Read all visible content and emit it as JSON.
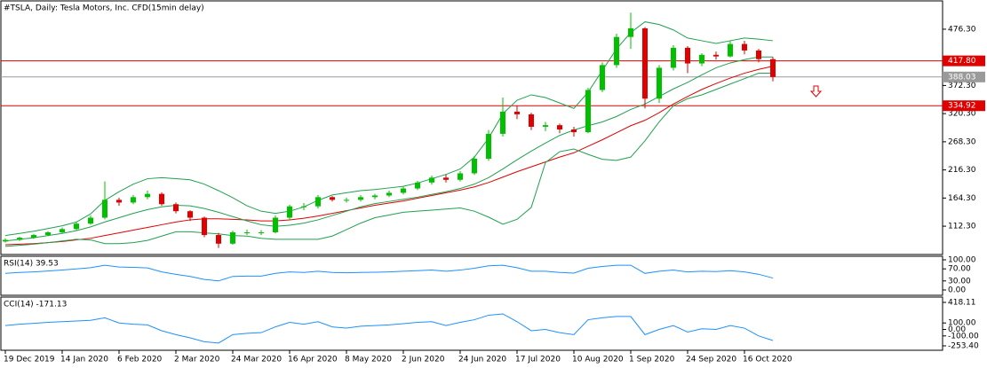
{
  "chart_data": [
    {
      "type": "candlestick",
      "title": "#TSLA, Daily:  Tesla Motors, Inc.  CFD(15min delay)",
      "categories": [
        "19 Dec 2019",
        null,
        null,
        null,
        "14 Jan 2020",
        null,
        null,
        null,
        "6 Feb 2020",
        null,
        null,
        null,
        "2 Mar 2020",
        null,
        null,
        null,
        "24 Mar 2020",
        null,
        null,
        null,
        "16 Apr 2020",
        null,
        null,
        null,
        "8 May 2020",
        null,
        null,
        null,
        "2 Jun 2020",
        null,
        null,
        null,
        "24 Jun 2020",
        null,
        null,
        null,
        "17 Jul 2020",
        null,
        null,
        null,
        "10 Aug 2020",
        null,
        null,
        null,
        "1 Sep 2020",
        null,
        null,
        null,
        "24 Sep 2020",
        null,
        null,
        null,
        "16 Oct 2020",
        null,
        null
      ],
      "open": [
        84,
        87,
        91,
        96,
        101,
        107,
        117,
        128,
        161,
        156,
        166,
        172,
        153,
        140,
        128,
        96,
        80,
        101,
        101,
        101,
        128,
        149,
        149,
        166,
        161,
        161,
        166,
        169,
        174,
        182,
        193,
        202,
        198,
        210,
        237,
        283,
        324,
        319,
        296,
        299,
        291,
        286,
        364,
        410,
        462,
        478,
        348,
        405,
        442,
        413,
        429,
        426,
        449,
        437,
        421
      ],
      "high": [
        90,
        93,
        98,
        103,
        110,
        120,
        132,
        195,
        165,
        170,
        178,
        175,
        156,
        142,
        130,
        100,
        104,
        106,
        105,
        132,
        152,
        155,
        170,
        168,
        165,
        170,
        172,
        178,
        186,
        196,
        206,
        208,
        214,
        242,
        290,
        350,
        335,
        322,
        305,
        302,
        296,
        368,
        415,
        468,
        507,
        480,
        410,
        447,
        445,
        432,
        435,
        456,
        455,
        440,
        425
      ],
      "low": [
        82,
        85,
        89,
        94,
        99,
        105,
        115,
        125,
        150,
        153,
        162,
        150,
        136,
        122,
        92,
        72,
        78,
        96,
        96,
        99,
        124,
        142,
        145,
        158,
        156,
        158,
        162,
        166,
        171,
        179,
        189,
        193,
        195,
        207,
        233,
        278,
        310,
        290,
        288,
        284,
        278,
        284,
        360,
        405,
        440,
        330,
        340,
        400,
        395,
        408,
        420,
        424,
        430,
        415,
        380
      ],
      "close": [
        87,
        91,
        96,
        101,
        107,
        117,
        128,
        161,
        156,
        166,
        172,
        153,
        140,
        128,
        96,
        80,
        101,
        101,
        101,
        128,
        149,
        149,
        166,
        161,
        161,
        166,
        169,
        174,
        182,
        193,
        202,
        198,
        210,
        237,
        283,
        324,
        319,
        296,
        299,
        291,
        286,
        364,
        410,
        462,
        478,
        348,
        405,
        442,
        413,
        429,
        426,
        449,
        437,
        421,
        388
      ],
      "up_color": "#00c000",
      "down_color": "#e00000",
      "series": [
        {
          "color": "#e00000",
          "values": [
            78,
            79,
            80,
            82,
            84,
            87,
            90,
            95,
            100,
            105,
            110,
            115,
            120,
            124,
            126,
            126,
            125,
            124,
            122,
            122,
            124,
            127,
            131,
            136,
            141,
            146,
            151,
            155,
            159,
            164,
            169,
            174,
            179,
            185,
            193,
            203,
            213,
            222,
            231,
            240,
            248,
            260,
            272,
            285,
            298,
            308,
            322,
            338,
            352,
            365,
            376,
            386,
            395,
            402,
            408
          ]
        },
        {
          "color": "#20a050",
          "values": [
            95,
            99,
            103,
            108,
            113,
            120,
            135,
            160,
            176,
            190,
            200,
            202,
            200,
            198,
            190,
            178,
            165,
            150,
            140,
            136,
            140,
            148,
            160,
            170,
            174,
            178,
            180,
            183,
            186,
            192,
            200,
            208,
            218,
            240,
            275,
            320,
            345,
            355,
            350,
            340,
            330,
            360,
            400,
            440,
            470,
            490,
            485,
            475,
            460,
            455,
            450,
            455,
            460,
            458,
            455
          ]
        },
        {
          "color": "#20a050",
          "values": [
            85,
            88,
            91,
            95,
            99,
            104,
            111,
            120,
            128,
            136,
            143,
            148,
            151,
            150,
            145,
            138,
            130,
            122,
            115,
            112,
            114,
            118,
            124,
            132,
            140,
            148,
            154,
            158,
            162,
            166,
            171,
            176,
            182,
            190,
            202,
            218,
            235,
            251,
            266,
            280,
            290,
            298,
            305,
            315,
            328,
            338,
            352,
            366,
            378,
            392,
            405,
            414,
            420,
            425,
            425
          ]
        },
        {
          "color": "#20a050",
          "values": [
            75,
            77,
            79,
            82,
            85,
            88,
            87,
            80,
            80,
            82,
            86,
            94,
            102,
            102,
            100,
            98,
            95,
            94,
            90,
            88,
            88,
            88,
            88,
            94,
            106,
            118,
            128,
            133,
            138,
            140,
            142,
            144,
            146,
            140,
            129,
            116,
            125,
            147,
            230,
            250,
            255,
            245,
            236,
            234,
            240,
            270,
            305,
            335,
            348,
            355,
            365,
            375,
            385,
            395,
            395
          ]
        }
      ],
      "levels": [
        {
          "value": 417.8,
          "label": "417.80",
          "color": "#e00000"
        },
        {
          "value": 388.03,
          "label": "388.03",
          "color": "#9a9a9a"
        },
        {
          "value": 334.92,
          "label": "334.92",
          "color": "#e00000"
        }
      ],
      "ylim": [
        60,
        527
      ],
      "yticks": [
        {
          "value": 112.3,
          "label": "112.30"
        },
        {
          "value": 164.3,
          "label": "164.30"
        },
        {
          "value": 216.3,
          "label": "216.30"
        },
        {
          "value": 268.3,
          "label": "268.30"
        },
        {
          "value": 320.3,
          "label": "320.30"
        },
        {
          "value": 372.3,
          "label": "372.30"
        },
        {
          "value": 476.3,
          "label": "476.30"
        }
      ]
    },
    {
      "type": "line",
      "title": "RSI(14) 39.53",
      "series": [
        {
          "color": "#1e90ff",
          "values": [
            55,
            58,
            60,
            63,
            66,
            70,
            74,
            82,
            76,
            75,
            73,
            60,
            52,
            45,
            35,
            30,
            45,
            46,
            46,
            55,
            60,
            58,
            62,
            58,
            57,
            58,
            59,
            60,
            62,
            64,
            66,
            62,
            66,
            72,
            80,
            82,
            74,
            62,
            62,
            58,
            56,
            72,
            78,
            82,
            82,
            55,
            62,
            66,
            60,
            62,
            61,
            64,
            60,
            52,
            39.53
          ]
        }
      ],
      "ylim": [
        0,
        100
      ],
      "yticks": [
        {
          "value": 0,
          "label": "0.00"
        },
        {
          "value": 30,
          "label": "30.00"
        },
        {
          "value": 70,
          "label": "70.00"
        },
        {
          "value": 100,
          "label": "100.00"
        }
      ]
    },
    {
      "type": "line",
      "title": "CCI(14) -171.13",
      "series": [
        {
          "color": "#1e90ff",
          "values": [
            60,
            80,
            95,
            110,
            120,
            130,
            140,
            180,
            100,
            80,
            70,
            -20,
            -80,
            -130,
            -190,
            -210,
            -80,
            -60,
            -50,
            40,
            110,
            80,
            120,
            40,
            20,
            50,
            60,
            70,
            90,
            110,
            120,
            60,
            110,
            150,
            220,
            240,
            120,
            -20,
            0,
            -50,
            -80,
            150,
            180,
            200,
            200,
            -80,
            0,
            60,
            -40,
            10,
            0,
            60,
            20,
            -100,
            -171.13
          ]
        }
      ],
      "ylim": [
        -253.4,
        418.11
      ],
      "yticks": [
        {
          "value": -253.4,
          "label": "-253.40"
        },
        {
          "value": -100,
          "label": "-100.00"
        },
        {
          "value": 0,
          "label": "0.00"
        },
        {
          "value": 100,
          "label": "100.00"
        },
        {
          "value": 418.11,
          "label": "418.11"
        }
      ]
    }
  ]
}
